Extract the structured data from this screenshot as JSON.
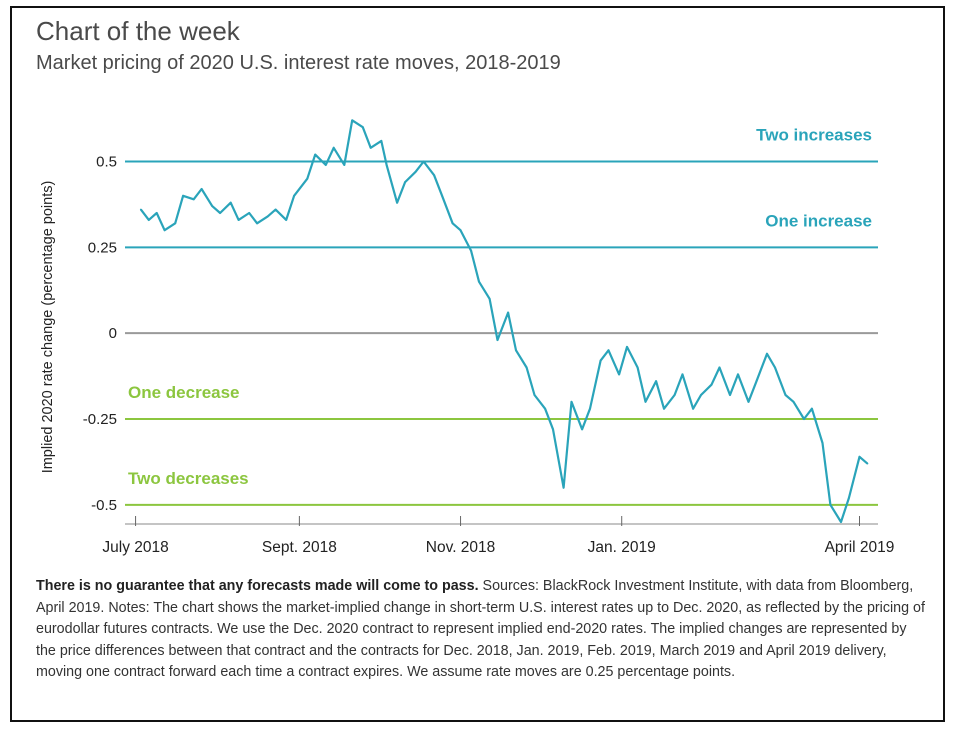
{
  "header": {
    "title": "Chart of the week",
    "subtitle": "Market pricing of 2020 U.S. interest rate moves, 2018-2019"
  },
  "colors": {
    "teal": "#2aa4ba",
    "green": "#8cc63f",
    "zero": "#9a9a9a",
    "text": "#333333"
  },
  "chart_data": {
    "type": "line",
    "title": "Market pricing of 2020 U.S. interest rate moves, 2018-2019",
    "ylabel": "Implied 2020 rate change (percentage points)",
    "xlabel": "",
    "ylim": [
      -0.55,
      0.65
    ],
    "xlim": [
      "2018-06-27",
      "2019-04-08"
    ],
    "grid": false,
    "x_ticks": [
      {
        "label": "July 2018",
        "date": "2018-07-01"
      },
      {
        "label": "Sept. 2018",
        "date": "2018-09-01"
      },
      {
        "label": "Nov. 2018",
        "date": "2018-11-01"
      },
      {
        "label": "Jan. 2019",
        "date": "2019-01-01"
      },
      {
        "label": "April 2019",
        "date": "2019-04-01"
      }
    ],
    "y_ticks": [
      {
        "label": "0.5",
        "value": 0.5
      },
      {
        "label": "0.25",
        "value": 0.25
      },
      {
        "label": "0",
        "value": 0
      },
      {
        "label": "-0.25",
        "value": -0.25
      },
      {
        "label": "-0.5",
        "value": -0.5
      }
    ],
    "reference_lines": [
      {
        "label": "Two increases",
        "value": 0.5,
        "color": "#2aa4ba",
        "label_side": "right"
      },
      {
        "label": "One increase",
        "value": 0.25,
        "color": "#2aa4ba",
        "label_side": "right"
      },
      {
        "label": "",
        "value": 0,
        "color": "#9a9a9a",
        "label_side": "none"
      },
      {
        "label": "One decrease",
        "value": -0.25,
        "color": "#8cc63f",
        "label_side": "left"
      },
      {
        "label": "Two decreases",
        "value": -0.5,
        "color": "#8cc63f",
        "label_side": "left"
      }
    ],
    "series": [
      {
        "color": "#2aa4ba",
        "x": [
          "2018-07-03",
          "2018-07-06",
          "2018-07-09",
          "2018-07-12",
          "2018-07-16",
          "2018-07-19",
          "2018-07-23",
          "2018-07-26",
          "2018-07-30",
          "2018-08-02",
          "2018-08-06",
          "2018-08-09",
          "2018-08-13",
          "2018-08-16",
          "2018-08-20",
          "2018-08-23",
          "2018-08-27",
          "2018-08-30",
          "2018-09-04",
          "2018-09-07",
          "2018-09-11",
          "2018-09-14",
          "2018-09-18",
          "2018-09-21",
          "2018-09-25",
          "2018-09-28",
          "2018-10-02",
          "2018-10-04",
          "2018-10-08",
          "2018-10-11",
          "2018-10-15",
          "2018-10-18",
          "2018-10-22",
          "2018-10-25",
          "2018-10-29",
          "2018-11-01",
          "2018-11-05",
          "2018-11-08",
          "2018-11-12",
          "2018-11-15",
          "2018-11-19",
          "2018-11-22",
          "2018-11-26",
          "2018-11-29",
          "2018-12-03",
          "2018-12-06",
          "2018-12-10",
          "2018-12-13",
          "2018-12-17",
          "2018-12-20",
          "2018-12-24",
          "2018-12-27",
          "2018-12-31",
          "2019-01-03",
          "2019-01-07",
          "2019-01-10",
          "2019-01-14",
          "2019-01-17",
          "2019-01-21",
          "2019-01-24",
          "2019-01-28",
          "2019-01-31",
          "2019-02-04",
          "2019-02-07",
          "2019-02-11",
          "2019-02-14",
          "2019-02-18",
          "2019-02-21",
          "2019-02-25",
          "2019-02-28",
          "2019-03-04",
          "2019-03-07",
          "2019-03-11",
          "2019-03-14",
          "2019-03-18",
          "2019-03-21",
          "2019-03-25",
          "2019-03-28",
          "2019-04-01",
          "2019-04-04"
        ],
        "values": [
          0.36,
          0.33,
          0.35,
          0.3,
          0.32,
          0.4,
          0.39,
          0.42,
          0.37,
          0.35,
          0.38,
          0.33,
          0.35,
          0.32,
          0.34,
          0.36,
          0.33,
          0.4,
          0.45,
          0.52,
          0.49,
          0.54,
          0.49,
          0.62,
          0.6,
          0.54,
          0.56,
          0.49,
          0.38,
          0.44,
          0.47,
          0.5,
          0.46,
          0.4,
          0.32,
          0.3,
          0.24,
          0.15,
          0.1,
          -0.02,
          0.06,
          -0.05,
          -0.1,
          -0.18,
          -0.22,
          -0.28,
          -0.45,
          -0.2,
          -0.28,
          -0.22,
          -0.08,
          -0.05,
          -0.12,
          -0.04,
          -0.1,
          -0.2,
          -0.14,
          -0.22,
          -0.18,
          -0.12,
          -0.22,
          -0.18,
          -0.15,
          -0.1,
          -0.18,
          -0.12,
          -0.2,
          -0.14,
          -0.06,
          -0.1,
          -0.18,
          -0.2,
          -0.25,
          -0.22,
          -0.32,
          -0.5,
          -0.55,
          -0.48,
          -0.36,
          -0.38
        ]
      }
    ]
  },
  "footnote": {
    "bold": "There is no guarantee that any forecasts made will come to pass.",
    "text": " Sources: BlackRock Investment Institute, with data from Bloomberg, April 2019. Notes: The chart shows the market-implied change in short-term U.S. interest rates up to Dec. 2020, as reflected by the pricing of eurodollar futures contracts. We use the Dec. 2020 contract to represent implied end-2020 rates. The implied changes are represented by the price differences between that contract and the contracts for Dec. 2018, Jan. 2019, Feb. 2019, March 2019 and April 2019 delivery, moving one contract forward each time a contract expires. We assume rate moves are 0.25 percentage points."
  }
}
